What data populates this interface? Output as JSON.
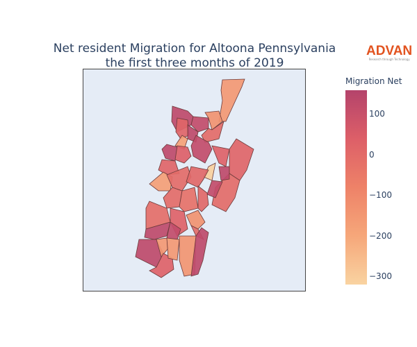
{
  "chart_data": {
    "type": "choropleth",
    "title": [
      "Net resident Migration for Altoona Pennsylvania",
      "the first three months of 2019"
    ],
    "colorbar": {
      "title": "Migration Net",
      "range": [
        -318,
        160
      ],
      "ticks": [
        100,
        0,
        -100,
        -200,
        -300
      ],
      "tick_labels": [
        "100",
        "0",
        "−100",
        "−200",
        "−300"
      ],
      "colorscale": [
        "#f9d3a1",
        "#f6a77a",
        "#ee8268",
        "#dd5f68",
        "#b4436b"
      ]
    },
    "region_values": [
      -150,
      130,
      120,
      -130,
      20,
      130,
      0,
      -180,
      120,
      130,
      40,
      30,
      20,
      0,
      -310,
      130,
      120,
      20,
      -170,
      0,
      10,
      0,
      -20,
      10,
      -10,
      30,
      130,
      120,
      -130,
      0,
      130,
      -150,
      30,
      -150,
      -140,
      130
    ],
    "map_background": "#e5ecf6",
    "border_color": "#6b3a3a"
  },
  "logo": {
    "brand": "ADVAN",
    "tagline": "Research through Technology"
  }
}
